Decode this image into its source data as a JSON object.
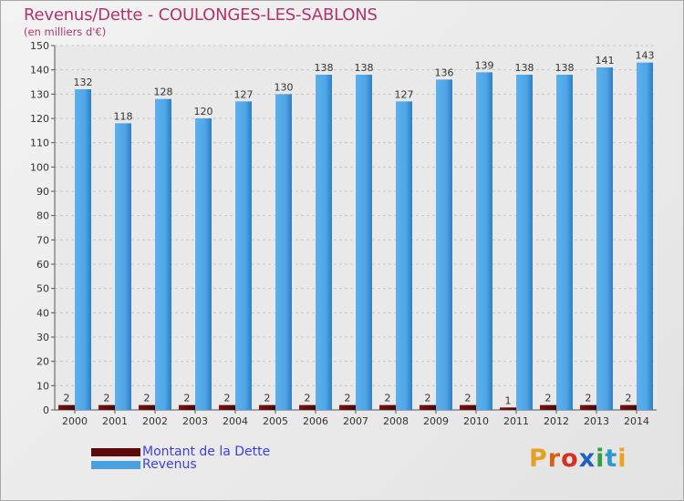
{
  "header": {
    "title": "Revenus/Dette - COULONGES-LES-SABLONS",
    "subtitle": "(en milliers d'€)"
  },
  "legend": {
    "items": [
      {
        "label": "Montant de la Dette",
        "color": "#5c0a0a"
      },
      {
        "label": "Revenus",
        "color": "#4a9fe0"
      }
    ]
  },
  "logo": {
    "letters": [
      "P",
      "r",
      "o",
      "x",
      "i",
      "t",
      "i"
    ],
    "colors": [
      "#e8a020",
      "#d86010",
      "#d83020",
      "#2060c0",
      "#30a040",
      "#3098d0",
      "#f0a020"
    ]
  },
  "chart_data": {
    "type": "bar",
    "categories": [
      "2000",
      "2001",
      "2002",
      "2003",
      "2004",
      "2005",
      "2006",
      "2007",
      "2008",
      "2009",
      "2010",
      "2011",
      "2012",
      "2013",
      "2014"
    ],
    "series": [
      {
        "name": "Montant de la Dette",
        "color": "#5c0a0a",
        "values": [
          2,
          2,
          2,
          2,
          2,
          2,
          2,
          2,
          2,
          2,
          2,
          1,
          2,
          2,
          2
        ]
      },
      {
        "name": "Revenus",
        "color": "#4a9fe0",
        "values": [
          132,
          118,
          128,
          120,
          127,
          130,
          138,
          138,
          127,
          136,
          139,
          138,
          138,
          141,
          143
        ]
      }
    ],
    "ylim": [
      0,
      150
    ],
    "yticks": [
      0,
      10,
      20,
      30,
      40,
      50,
      60,
      70,
      80,
      90,
      100,
      110,
      120,
      130,
      140,
      150
    ],
    "grid": true,
    "legend_position": "bottom-left"
  }
}
